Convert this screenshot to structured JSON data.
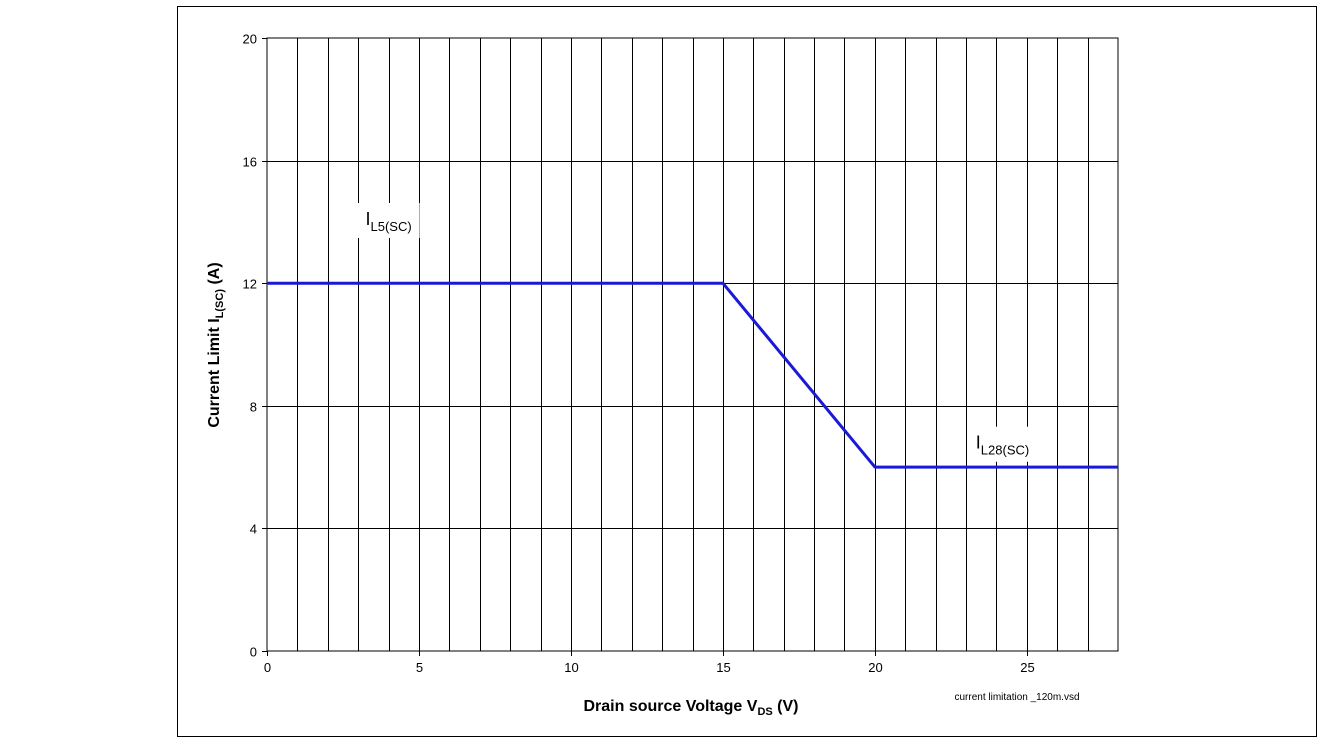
{
  "chart_data": {
    "type": "line",
    "title": "",
    "xlabel": {
      "main": "Drain source Voltage V",
      "sub": "DS",
      "tail": " (V)"
    },
    "ylabel": {
      "main": "Current Limit I",
      "sub": "L(SC)",
      "tail": " (A)"
    },
    "xlim": [
      0,
      28
    ],
    "ylim": [
      0,
      20
    ],
    "x_ticks": [
      0,
      5,
      10,
      15,
      20,
      25
    ],
    "y_ticks": [
      0,
      4,
      8,
      12,
      16,
      20
    ],
    "x_minor_grid_step": 1,
    "y_major_grid_step": 4,
    "grid": true,
    "series": [
      {
        "color": "#1a1ad6",
        "x": [
          0,
          15,
          20,
          28
        ],
        "y": [
          12,
          12,
          6,
          6
        ]
      }
    ],
    "annotations": [
      {
        "main": "I",
        "sub": "L5(SC)",
        "x": 4,
        "y": 13.9,
        "boxed": true
      },
      {
        "main": "I",
        "sub": "L28(SC)",
        "x": 24.2,
        "y": 6.6,
        "boxed": true
      }
    ],
    "footer_note": "current limitation _120m.vsd"
  }
}
